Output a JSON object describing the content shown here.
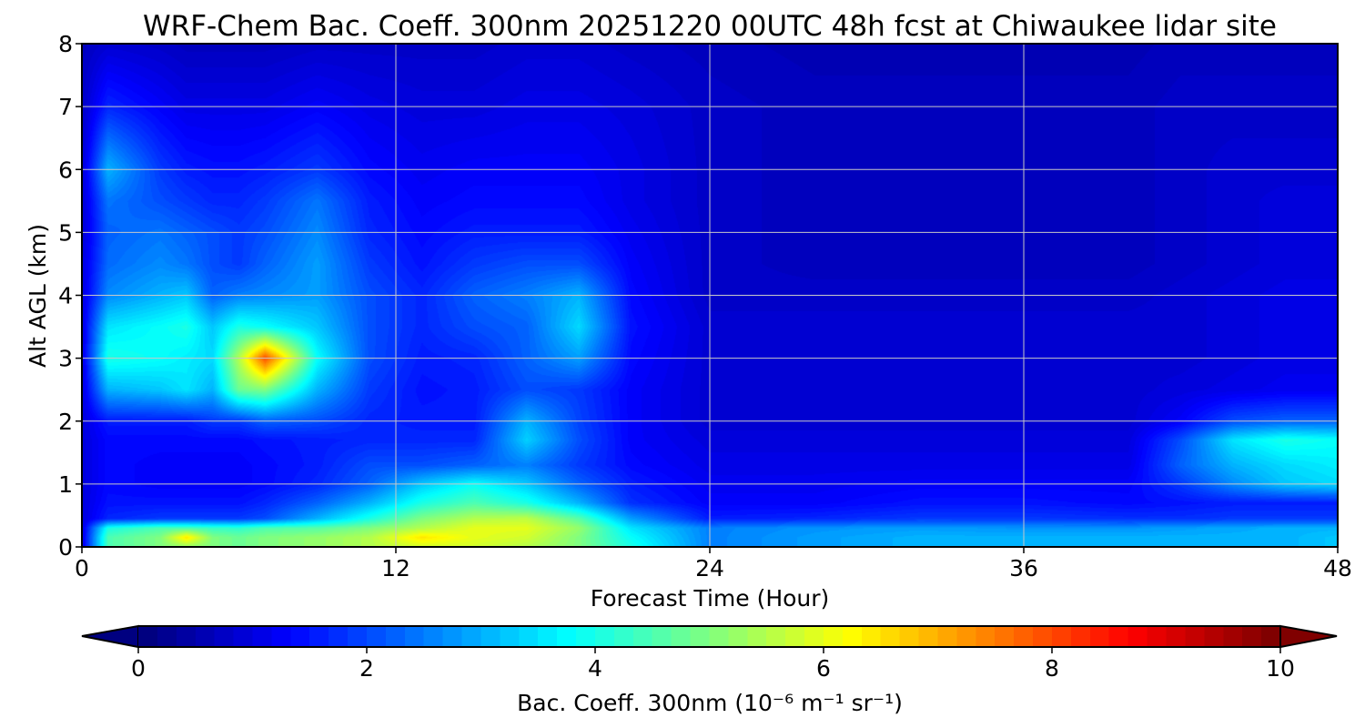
{
  "chart_data": {
    "type": "heatmap",
    "title": "WRF-Chem Bac. Coeff. 300nm  20251220 00UTC 48h fcst at Chiwaukee lidar site",
    "xlabel": "Forecast Time (Hour)",
    "ylabel": "Alt AGL (km)",
    "xlim": [
      0,
      48
    ],
    "ylim": [
      0,
      8
    ],
    "xticks": [
      "0",
      "12",
      "24",
      "36",
      "48"
    ],
    "yticks": [
      "0",
      "1",
      "2",
      "3",
      "4",
      "5",
      "6",
      "7",
      "8"
    ],
    "grid": true,
    "colormap": "jet",
    "colorbar": {
      "orientation": "horizontal",
      "extend": "both",
      "range": [
        0,
        10
      ],
      "ticks": [
        "0",
        "2",
        "4",
        "6",
        "8",
        "10"
      ],
      "label": "Bac. Coeff. 300nm  (10⁻⁶ m⁻¹ sr⁻¹)"
    },
    "x": [
      0,
      1,
      3,
      4,
      5,
      6,
      7,
      9,
      11,
      13,
      15,
      17,
      19,
      21,
      24,
      28,
      32,
      36,
      40,
      42,
      44,
      46,
      48
    ],
    "y": [
      0,
      0.15,
      0.3,
      0.45,
      0.7,
      1.0,
      1.3,
      1.7,
      2.0,
      2.5,
      3.0,
      3.5,
      4.0,
      4.5,
      5.0,
      5.5,
      6.0,
      7.0,
      8.0
    ],
    "z": [
      [
        0.9,
        4.5,
        5.0,
        5.2,
        5.0,
        4.8,
        5.0,
        5.2,
        5.5,
        5.8,
        5.8,
        5.5,
        5.0,
        4.0,
        2.5,
        2.8,
        3.0,
        3.0,
        3.0,
        3.0,
        3.0,
        3.0,
        3.2
      ],
      [
        0.9,
        4.5,
        5.0,
        6.5,
        5.0,
        4.8,
        5.0,
        5.2,
        5.5,
        6.5,
        6.0,
        5.8,
        5.0,
        3.8,
        2.5,
        2.8,
        3.0,
        3.0,
        3.0,
        3.0,
        3.0,
        3.0,
        3.2
      ],
      [
        0.9,
        4.0,
        4.5,
        4.5,
        4.3,
        4.2,
        4.5,
        4.6,
        5.0,
        5.5,
        6.0,
        6.0,
        5.2,
        3.5,
        2.5,
        2.7,
        2.8,
        2.7,
        2.7,
        2.8,
        2.9,
        3.0,
        3.0
      ],
      [
        0.9,
        1.6,
        1.8,
        1.8,
        1.8,
        1.8,
        2.0,
        3.0,
        4.0,
        5.0,
        5.5,
        5.6,
        4.6,
        2.8,
        1.5,
        1.6,
        1.8,
        1.8,
        1.7,
        1.7,
        1.8,
        1.8,
        1.8
      ],
      [
        0.9,
        1.4,
        1.4,
        1.4,
        1.4,
        1.4,
        1.6,
        2.2,
        3.0,
        4.0,
        4.5,
        4.0,
        3.0,
        1.7,
        1.2,
        1.2,
        1.4,
        1.4,
        1.3,
        1.4,
        1.5,
        1.5,
        1.5
      ],
      [
        0.9,
        1.3,
        1.2,
        1.2,
        1.2,
        1.2,
        1.3,
        1.6,
        2.2,
        3.2,
        3.8,
        3.2,
        2.2,
        1.5,
        1.1,
        1.1,
        1.2,
        1.2,
        1.2,
        1.8,
        2.6,
        3.2,
        3.4
      ],
      [
        0.9,
        1.3,
        1.2,
        1.2,
        1.2,
        1.2,
        1.3,
        1.5,
        2.0,
        2.0,
        2.2,
        2.5,
        1.8,
        1.3,
        1.0,
        1.0,
        1.0,
        1.0,
        1.0,
        2.2,
        3.0,
        3.4,
        3.6
      ],
      [
        0.9,
        1.3,
        1.3,
        1.3,
        1.3,
        1.3,
        1.4,
        1.5,
        1.6,
        1.6,
        1.6,
        3.3,
        2.0,
        1.2,
        0.9,
        0.9,
        0.9,
        0.9,
        0.9,
        2.0,
        3.5,
        4.0,
        3.8
      ],
      [
        0.9,
        1.5,
        1.5,
        1.5,
        1.8,
        1.8,
        2.2,
        2.0,
        1.6,
        1.5,
        1.5,
        3.0,
        1.9,
        1.2,
        0.8,
        0.8,
        0.8,
        0.8,
        0.8,
        1.2,
        2.0,
        2.2,
        2.2
      ],
      [
        0.9,
        3.0,
        3.2,
        3.5,
        3.0,
        4.8,
        5.0,
        3.0,
        1.8,
        1.4,
        1.5,
        2.0,
        1.8,
        1.2,
        0.8,
        0.8,
        0.8,
        0.8,
        0.8,
        0.9,
        1.0,
        1.1,
        1.1
      ],
      [
        0.9,
        4.0,
        3.8,
        3.6,
        3.4,
        5.5,
        8.0,
        3.8,
        2.0,
        1.5,
        1.6,
        2.2,
        2.8,
        1.3,
        0.8,
        0.8,
        0.8,
        0.8,
        0.8,
        0.8,
        0.9,
        1.0,
        1.0
      ],
      [
        0.9,
        3.5,
        3.8,
        4.0,
        3.2,
        4.0,
        3.8,
        3.2,
        2.0,
        1.6,
        2.0,
        2.2,
        3.4,
        1.4,
        0.8,
        0.8,
        0.8,
        0.8,
        0.8,
        0.8,
        0.9,
        1.0,
        1.0
      ],
      [
        0.9,
        2.6,
        3.0,
        3.2,
        2.2,
        2.5,
        2.6,
        2.8,
        2.0,
        1.6,
        2.2,
        2.5,
        3.0,
        1.3,
        0.7,
        0.7,
        0.7,
        0.7,
        0.7,
        0.8,
        0.9,
        1.0,
        1.0
      ],
      [
        0.9,
        2.3,
        2.6,
        2.4,
        2.0,
        1.8,
        2.2,
        2.8,
        1.8,
        1.4,
        1.8,
        2.0,
        2.0,
        1.2,
        0.7,
        0.6,
        0.6,
        0.6,
        0.6,
        0.7,
        0.8,
        0.9,
        0.9
      ],
      [
        0.8,
        2.2,
        2.4,
        2.2,
        2.0,
        1.8,
        2.0,
        2.6,
        1.6,
        1.3,
        1.5,
        1.5,
        1.5,
        1.1,
        0.7,
        0.6,
        0.6,
        0.6,
        0.6,
        0.7,
        0.8,
        0.9,
        0.9
      ],
      [
        0.8,
        2.4,
        2.0,
        1.8,
        1.6,
        1.6,
        1.8,
        2.4,
        1.5,
        1.2,
        1.3,
        1.3,
        1.3,
        1.0,
        0.7,
        0.6,
        0.6,
        0.6,
        0.6,
        0.7,
        0.8,
        0.9,
        0.9
      ],
      [
        0.8,
        3.0,
        1.8,
        1.5,
        1.4,
        1.4,
        1.5,
        1.8,
        1.3,
        1.1,
        1.2,
        1.2,
        1.2,
        1.0,
        0.7,
        0.6,
        0.6,
        0.6,
        0.6,
        0.7,
        0.8,
        0.8,
        0.8
      ],
      [
        0.7,
        1.6,
        1.2,
        1.0,
        1.0,
        1.0,
        1.0,
        1.2,
        1.0,
        0.9,
        0.9,
        1.0,
        1.0,
        0.9,
        0.7,
        0.6,
        0.6,
        0.6,
        0.6,
        0.7,
        0.7,
        0.7,
        0.7
      ],
      [
        0.6,
        0.8,
        0.7,
        0.6,
        0.6,
        0.6,
        0.6,
        0.7,
        0.7,
        0.7,
        0.7,
        0.8,
        0.8,
        0.7,
        0.6,
        0.5,
        0.5,
        0.5,
        0.5,
        0.6,
        0.6,
        0.6,
        0.6
      ]
    ]
  }
}
